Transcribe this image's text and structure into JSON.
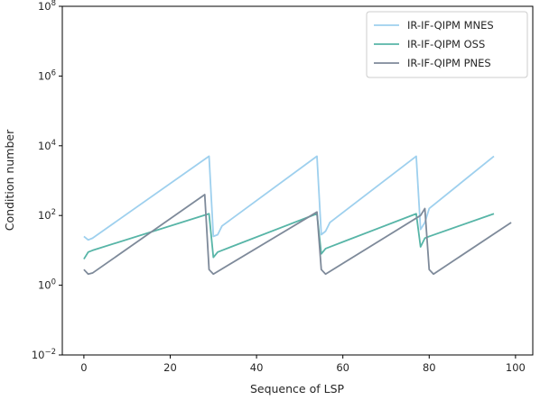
{
  "chart_data": {
    "type": "line",
    "title": "",
    "xlabel": "Sequence of LSP",
    "ylabel": "Condition number",
    "xlim": [
      -5,
      104
    ],
    "ylim_log10": [
      -2,
      8
    ],
    "yscale": "log",
    "x_ticks": [
      0,
      20,
      40,
      60,
      80,
      100
    ],
    "x_tick_labels": [
      "0",
      "20",
      "40",
      "60",
      "80",
      "100"
    ],
    "y_ticks_log10": [
      -2,
      0,
      2,
      4,
      6,
      8
    ],
    "y_tick_base": "10",
    "y_tick_exponents": [
      "−2",
      "0",
      "2",
      "4",
      "6",
      "8"
    ],
    "grid": false,
    "legend_position": "upper right",
    "series": [
      {
        "name": "IR-IF-QIPM MNES",
        "color": "#9ED0EE",
        "x": [
          0,
          1,
          2,
          29,
          30,
          31,
          32,
          54,
          55,
          56,
          57,
          77,
          78,
          79,
          80,
          95
        ],
        "y_log10": [
          1.4,
          1.3,
          1.35,
          3.7,
          1.4,
          1.45,
          1.7,
          3.7,
          1.45,
          1.55,
          1.8,
          3.7,
          1.6,
          1.8,
          2.2,
          3.7
        ]
      },
      {
        "name": "IR-IF-QIPM OSS",
        "color": "#57B5A7",
        "x": [
          0,
          1,
          2,
          29,
          30,
          31,
          32,
          54,
          55,
          56,
          57,
          77,
          78,
          79,
          80,
          95
        ],
        "y_log10": [
          0.75,
          0.95,
          1.0,
          2.05,
          0.8,
          0.95,
          1.0,
          2.05,
          0.9,
          1.05,
          1.1,
          2.05,
          1.1,
          1.35,
          1.4,
          2.05
        ]
      },
      {
        "name": "IR-IF-QIPM PNES",
        "color": "#7E8A9A",
        "x": [
          0,
          1,
          2,
          28,
          29,
          30,
          54,
          55,
          56,
          78,
          79,
          80,
          81,
          99
        ],
        "y_log10": [
          0.45,
          0.32,
          0.35,
          2.6,
          0.45,
          0.32,
          2.1,
          0.45,
          0.32,
          2.0,
          2.2,
          0.45,
          0.32,
          1.8
        ]
      }
    ]
  }
}
